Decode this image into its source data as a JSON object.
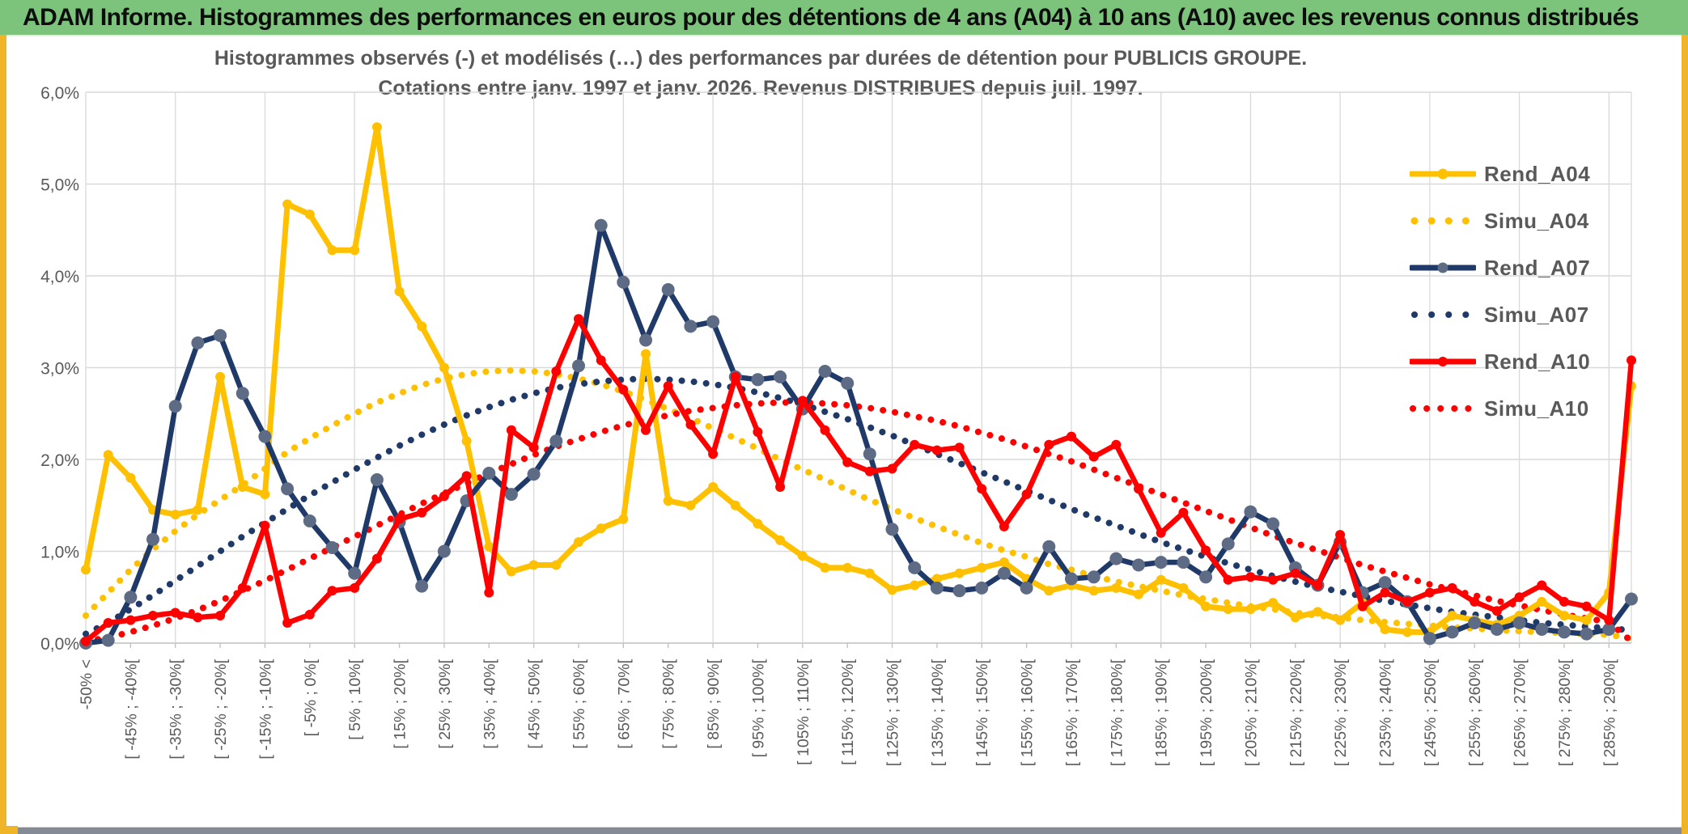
{
  "header": {
    "title": "ADAM Informe. Histogrammes des performances en euros pour des détentions de 4 ans (A04) à 10 ans (A10) avec les revenus connus distribués"
  },
  "colors": {
    "header_green": "#7cc47c",
    "accent_gold": "#f0b428",
    "series_gold": "#FFC000",
    "series_navy": "#1f3a68",
    "series_navy_marker": "#5d6b85",
    "series_red": "#fe0000",
    "grid": "#d9d9d9",
    "axis": "#bfbfbf",
    "text_gray": "#595959",
    "bottom_band": "#858b96"
  },
  "chart_data": {
    "type": "line",
    "title": "Histogrammes observés (-) et modélisés (…) des performances par durées de détention pour PUBLICIS GROUPE.",
    "subtitle": "Cotations entre janv. 1997 et janv. 2026. Revenus DISTRIBUES depuis juil. 1997.",
    "ylabel": "",
    "xlabel": "",
    "ylim": [
      0,
      6
    ],
    "grid": true,
    "legend_position": "right-inside",
    "y_tick_labels": [
      "6,0%",
      "5,0%",
      "4,0%",
      "3,0%",
      "2,0%",
      "1,0%",
      "0,0%"
    ],
    "y_tick_values": [
      6,
      5,
      4,
      3,
      2,
      1,
      0
    ],
    "num_bins": 70,
    "x_label_step": 2,
    "x_tick_labels": [
      "-50% <",
      "[ -45% ; -40%[",
      "[ -35% ; -30%[",
      "[ -25% ; -20%[",
      "[ -15% ; -10%[",
      "[ -5% ; 0%[",
      "[ 5% ; 10%[",
      "[ 15% ; 20%[",
      "[ 25% ; 30%[",
      "[ 35% ; 40%[",
      "[ 45% ; 50%[",
      "[ 55% ; 60%[",
      "[ 65% ; 70%[",
      "[ 75% ; 80%[",
      "[ 85% ; 90%[",
      "[ 95% ; 100%[",
      "[ 105% ; 110%[",
      "[ 115% ; 120%[",
      "[ 125% ; 130%[",
      "[ 135% ; 140%[",
      "[ 145% ; 150%[",
      "[ 155% ; 160%[",
      "[ 165% ; 170%[",
      "[ 175% ; 180%[",
      "[ 185% ; 190%[",
      "[ 195% ; 200%[",
      "[ 205% ; 210%[",
      "[ 215% ; 220%[",
      "[ 225% ; 230%[",
      "[ 235% ; 240%[",
      "[ 245% ; 250%[",
      "[ 255% ; 260%[",
      "[ 265% ; 270%[",
      "[ 275% ; 280%[",
      "[ 285% ; 290%["
    ],
    "series": [
      {
        "name": "Rend_A04",
        "style": "solid",
        "color": "#FFC000",
        "marker": true,
        "values": [
          0.8,
          2.05,
          1.8,
          1.45,
          1.4,
          1.45,
          2.9,
          1.7,
          1.62,
          4.78,
          4.67,
          4.28,
          4.28,
          5.62,
          3.83,
          3.45,
          3.0,
          2.2,
          1.05,
          0.78,
          0.85,
          0.85,
          1.1,
          1.25,
          1.35,
          3.15,
          1.55,
          1.5,
          1.7,
          1.5,
          1.3,
          1.12,
          0.95,
          0.82,
          0.82,
          0.76,
          0.58,
          0.63,
          0.7,
          0.76,
          0.82,
          0.88,
          0.7,
          0.57,
          0.63,
          0.57,
          0.6,
          0.53,
          0.69,
          0.6,
          0.4,
          0.37,
          0.37,
          0.44,
          0.28,
          0.34,
          0.25,
          0.44,
          0.15,
          0.12,
          0.12,
          0.3,
          0.25,
          0.2,
          0.3,
          0.45,
          0.3,
          0.25,
          0.55,
          2.8
        ]
      },
      {
        "name": "Simu_A04",
        "style": "dotted",
        "color": "#FFC000",
        "marker": false,
        "values": [
          0.3,
          0.55,
          0.8,
          1.02,
          1.22,
          1.4,
          1.56,
          1.72,
          1.9,
          2.08,
          2.23,
          2.37,
          2.5,
          2.62,
          2.72,
          2.81,
          2.88,
          2.93,
          2.96,
          2.97,
          2.96,
          2.93,
          2.88,
          2.82,
          2.74,
          2.65,
          2.55,
          2.45,
          2.34,
          2.23,
          2.12,
          2.0,
          1.89,
          1.78,
          1.67,
          1.56,
          1.46,
          1.36,
          1.27,
          1.18,
          1.09,
          1.01,
          0.94,
          0.86,
          0.8,
          0.73,
          0.67,
          0.62,
          0.57,
          0.52,
          0.48,
          0.44,
          0.4,
          0.37,
          0.33,
          0.3,
          0.28,
          0.25,
          0.23,
          0.21,
          0.19,
          0.17,
          0.16,
          0.14,
          0.13,
          0.12,
          0.11,
          0.1,
          0.09,
          0.05
        ]
      },
      {
        "name": "Rend_A07",
        "style": "solid",
        "color": "#1f3a68",
        "marker": true,
        "values": [
          0.0,
          0.03,
          0.5,
          1.13,
          2.58,
          3.27,
          3.35,
          2.72,
          2.25,
          1.68,
          1.33,
          1.04,
          0.76,
          1.78,
          1.32,
          0.62,
          1.0,
          1.55,
          1.85,
          1.62,
          1.84,
          2.2,
          3.02,
          4.55,
          3.93,
          3.3,
          3.85,
          3.45,
          3.5,
          2.9,
          2.87,
          2.9,
          2.55,
          2.96,
          2.83,
          2.06,
          1.24,
          0.82,
          0.6,
          0.57,
          0.6,
          0.76,
          0.6,
          1.05,
          0.7,
          0.72,
          0.92,
          0.85,
          0.88,
          0.88,
          0.72,
          1.08,
          1.43,
          1.3,
          0.82,
          0.63,
          1.1,
          0.55,
          0.66,
          0.45,
          0.05,
          0.12,
          0.22,
          0.15,
          0.22,
          0.15,
          0.12,
          0.1,
          0.15,
          0.48
        ]
      },
      {
        "name": "Simu_A07",
        "style": "dotted",
        "color": "#1f3a68",
        "marker": false,
        "values": [
          0.1,
          0.22,
          0.37,
          0.52,
          0.68,
          0.84,
          1.0,
          1.16,
          1.31,
          1.46,
          1.61,
          1.75,
          1.89,
          2.02,
          2.15,
          2.27,
          2.38,
          2.48,
          2.57,
          2.65,
          2.72,
          2.78,
          2.82,
          2.85,
          2.87,
          2.88,
          2.87,
          2.85,
          2.82,
          2.78,
          2.73,
          2.67,
          2.6,
          2.52,
          2.44,
          2.35,
          2.26,
          2.16,
          2.06,
          1.96,
          1.86,
          1.76,
          1.66,
          1.56,
          1.46,
          1.37,
          1.28,
          1.19,
          1.1,
          1.02,
          0.94,
          0.87,
          0.8,
          0.73,
          0.67,
          0.61,
          0.56,
          0.51,
          0.46,
          0.42,
          0.38,
          0.34,
          0.31,
          0.28,
          0.25,
          0.22,
          0.2,
          0.18,
          0.16,
          0.14
        ]
      },
      {
        "name": "Rend_A10",
        "style": "solid",
        "color": "#fe0000",
        "marker": true,
        "values": [
          0.02,
          0.22,
          0.25,
          0.3,
          0.33,
          0.28,
          0.3,
          0.6,
          1.28,
          0.22,
          0.31,
          0.57,
          0.6,
          0.92,
          1.35,
          1.42,
          1.6,
          1.82,
          0.55,
          2.32,
          2.13,
          2.96,
          3.53,
          3.08,
          2.76,
          2.32,
          2.8,
          2.38,
          2.06,
          2.9,
          2.3,
          1.7,
          2.64,
          2.32,
          1.97,
          1.87,
          1.9,
          2.16,
          2.1,
          2.13,
          1.68,
          1.27,
          1.62,
          2.16,
          2.25,
          2.03,
          2.16,
          1.68,
          1.2,
          1.42,
          1.01,
          0.69,
          0.72,
          0.69,
          0.76,
          0.63,
          1.18,
          0.4,
          0.55,
          0.45,
          0.55,
          0.6,
          0.45,
          0.35,
          0.5,
          0.63,
          0.45,
          0.4,
          0.25,
          3.08
        ]
      },
      {
        "name": "Simu_A10",
        "style": "dotted",
        "color": "#fe0000",
        "marker": false,
        "values": [
          0.02,
          0.06,
          0.12,
          0.19,
          0.27,
          0.36,
          0.46,
          0.57,
          0.68,
          0.8,
          0.92,
          1.04,
          1.16,
          1.28,
          1.4,
          1.52,
          1.63,
          1.74,
          1.85,
          1.95,
          2.05,
          2.14,
          2.22,
          2.3,
          2.37,
          2.43,
          2.48,
          2.53,
          2.56,
          2.59,
          2.61,
          2.62,
          2.62,
          2.61,
          2.59,
          2.56,
          2.52,
          2.47,
          2.42,
          2.36,
          2.29,
          2.22,
          2.14,
          2.06,
          1.98,
          1.89,
          1.8,
          1.71,
          1.62,
          1.53,
          1.44,
          1.35,
          1.26,
          1.17,
          1.09,
          1.01,
          0.93,
          0.85,
          0.78,
          0.71,
          0.64,
          0.58,
          0.52,
          0.46,
          0.41,
          0.36,
          0.31,
          0.27,
          0.23,
          0.02
        ]
      }
    ],
    "legend": [
      {
        "label": "Rend_A04",
        "style": "solid",
        "color": "#FFC000"
      },
      {
        "label": "Simu_A04",
        "style": "dotted",
        "color": "#FFC000"
      },
      {
        "label": "Rend_A07",
        "style": "solid",
        "color": "#1f3a68"
      },
      {
        "label": "Simu_A07",
        "style": "dotted",
        "color": "#1f3a68"
      },
      {
        "label": "Rend_A10",
        "style": "solid",
        "color": "#fe0000"
      },
      {
        "label": "Simu_A10",
        "style": "dotted",
        "color": "#fe0000"
      }
    ]
  }
}
